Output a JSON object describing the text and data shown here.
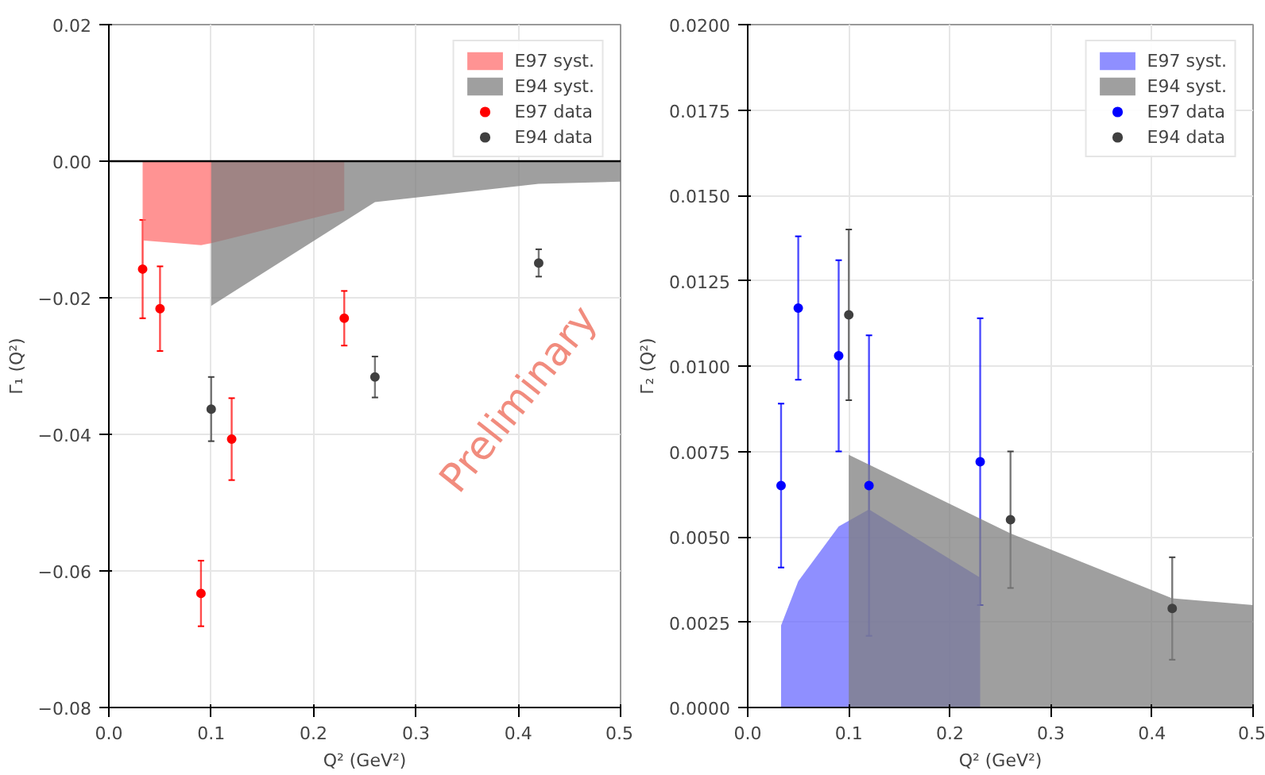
{
  "chart_data": [
    {
      "type": "scatter",
      "xlabel": "Q² (GeV²)",
      "ylabel": "Γ₁ (Q²)",
      "xlim": [
        0,
        0.5
      ],
      "ylim": [
        -0.08,
        0.02
      ],
      "xticks": [
        {
          "value": 0,
          "label": "0.0"
        },
        0.1,
        0.2,
        0.3,
        0.4,
        0.5
      ],
      "yticks": [
        {
          "value": -0.08,
          "label": "−0.08"
        },
        {
          "value": -0.06,
          "label": "−0.06"
        },
        {
          "value": -0.04,
          "label": "−0.04"
        },
        {
          "value": -0.02,
          "label": "−0.02"
        },
        {
          "value": 0,
          "label": "0.00"
        },
        0.02
      ],
      "grid": true,
      "legend": "top right",
      "ref_lines": [
        {
          "axis": "y",
          "value": 0,
          "color": "#000000"
        }
      ],
      "annotations": [
        "Preliminary"
      ],
      "series": [
        {
          "name": "E97 syst.",
          "type": "area",
          "color": "#ff6f6f",
          "x": [
            0.033,
            0.09,
            0.1,
            0.23
          ],
          "values": [
            -0.0116,
            -0.0123,
            -0.012,
            -0.0072
          ]
        },
        {
          "name": "E94 syst.",
          "type": "area",
          "color": "#7f7f7f",
          "x": [
            0.1,
            0.26,
            0.42,
            0.5
          ],
          "values": [
            -0.0212,
            -0.006,
            -0.0033,
            -0.003
          ]
        },
        {
          "name": "E97 data",
          "marker": "circle",
          "color": "#ff0000",
          "x": [
            0.033,
            0.05,
            0.09,
            0.12,
            0.23
          ],
          "values": [
            -0.0158,
            -0.0216,
            -0.0633,
            -0.0407,
            -0.023
          ],
          "errors": [
            0.0072,
            0.0062,
            0.0048,
            0.006,
            0.004
          ]
        },
        {
          "name": "E94 data",
          "marker": "circle",
          "color": "#404040",
          "x": [
            0.1,
            0.26,
            0.42
          ],
          "values": [
            -0.0363,
            -0.0316,
            -0.0149
          ],
          "errors": [
            0.0047,
            0.003,
            0.002
          ]
        }
      ]
    },
    {
      "type": "scatter",
      "xlabel": "Q² (GeV²)",
      "ylabel": "Γ₂ (Q²)",
      "xlim": [
        0,
        0.5
      ],
      "ylim": [
        0,
        0.02
      ],
      "xticks": [
        {
          "value": 0,
          "label": "0.0"
        },
        0.1,
        0.2,
        0.3,
        0.4,
        0.5
      ],
      "yticks": [
        {
          "value": 0,
          "label": "0.0000"
        },
        {
          "value": 0.0025,
          "label": "0.0025"
        },
        {
          "value": 0.005,
          "label": "0.0050"
        },
        {
          "value": 0.0075,
          "label": "0.0075"
        },
        {
          "value": 0.01,
          "label": "0.0100"
        },
        {
          "value": 0.0125,
          "label": "0.0125"
        },
        {
          "value": 0.015,
          "label": "0.0150"
        },
        {
          "value": 0.0175,
          "label": "0.0175"
        },
        {
          "value": 0.02,
          "label": "0.0200"
        }
      ],
      "grid": true,
      "legend": "top right",
      "series": [
        {
          "name": "E97 syst.",
          "type": "area",
          "color": "#6a6aff",
          "x": [
            0.033,
            0.05,
            0.09,
            0.12,
            0.23
          ],
          "values": [
            0.0024,
            0.0037,
            0.0053,
            0.0058,
            0.0038
          ]
        },
        {
          "name": "E94 syst.",
          "type": "area",
          "color": "#7f7f7f",
          "x": [
            0.1,
            0.26,
            0.42,
            0.5
          ],
          "values": [
            0.0074,
            0.0051,
            0.0032,
            0.003
          ]
        },
        {
          "name": "E97 data",
          "marker": "circle",
          "color": "#0000ff",
          "x": [
            0.033,
            0.05,
            0.09,
            0.12,
            0.23
          ],
          "values": [
            0.0065,
            0.0117,
            0.0103,
            0.0065,
            0.0072
          ],
          "errors": [
            0.0024,
            0.0021,
            0.0028,
            0.0044,
            0.0042
          ]
        },
        {
          "name": "E94 data",
          "marker": "circle",
          "color": "#404040",
          "x": [
            0.1,
            0.26,
            0.42
          ],
          "values": [
            0.0115,
            0.0055,
            0.0029
          ],
          "errors": [
            0.0025,
            0.002,
            0.0015
          ]
        }
      ]
    }
  ]
}
